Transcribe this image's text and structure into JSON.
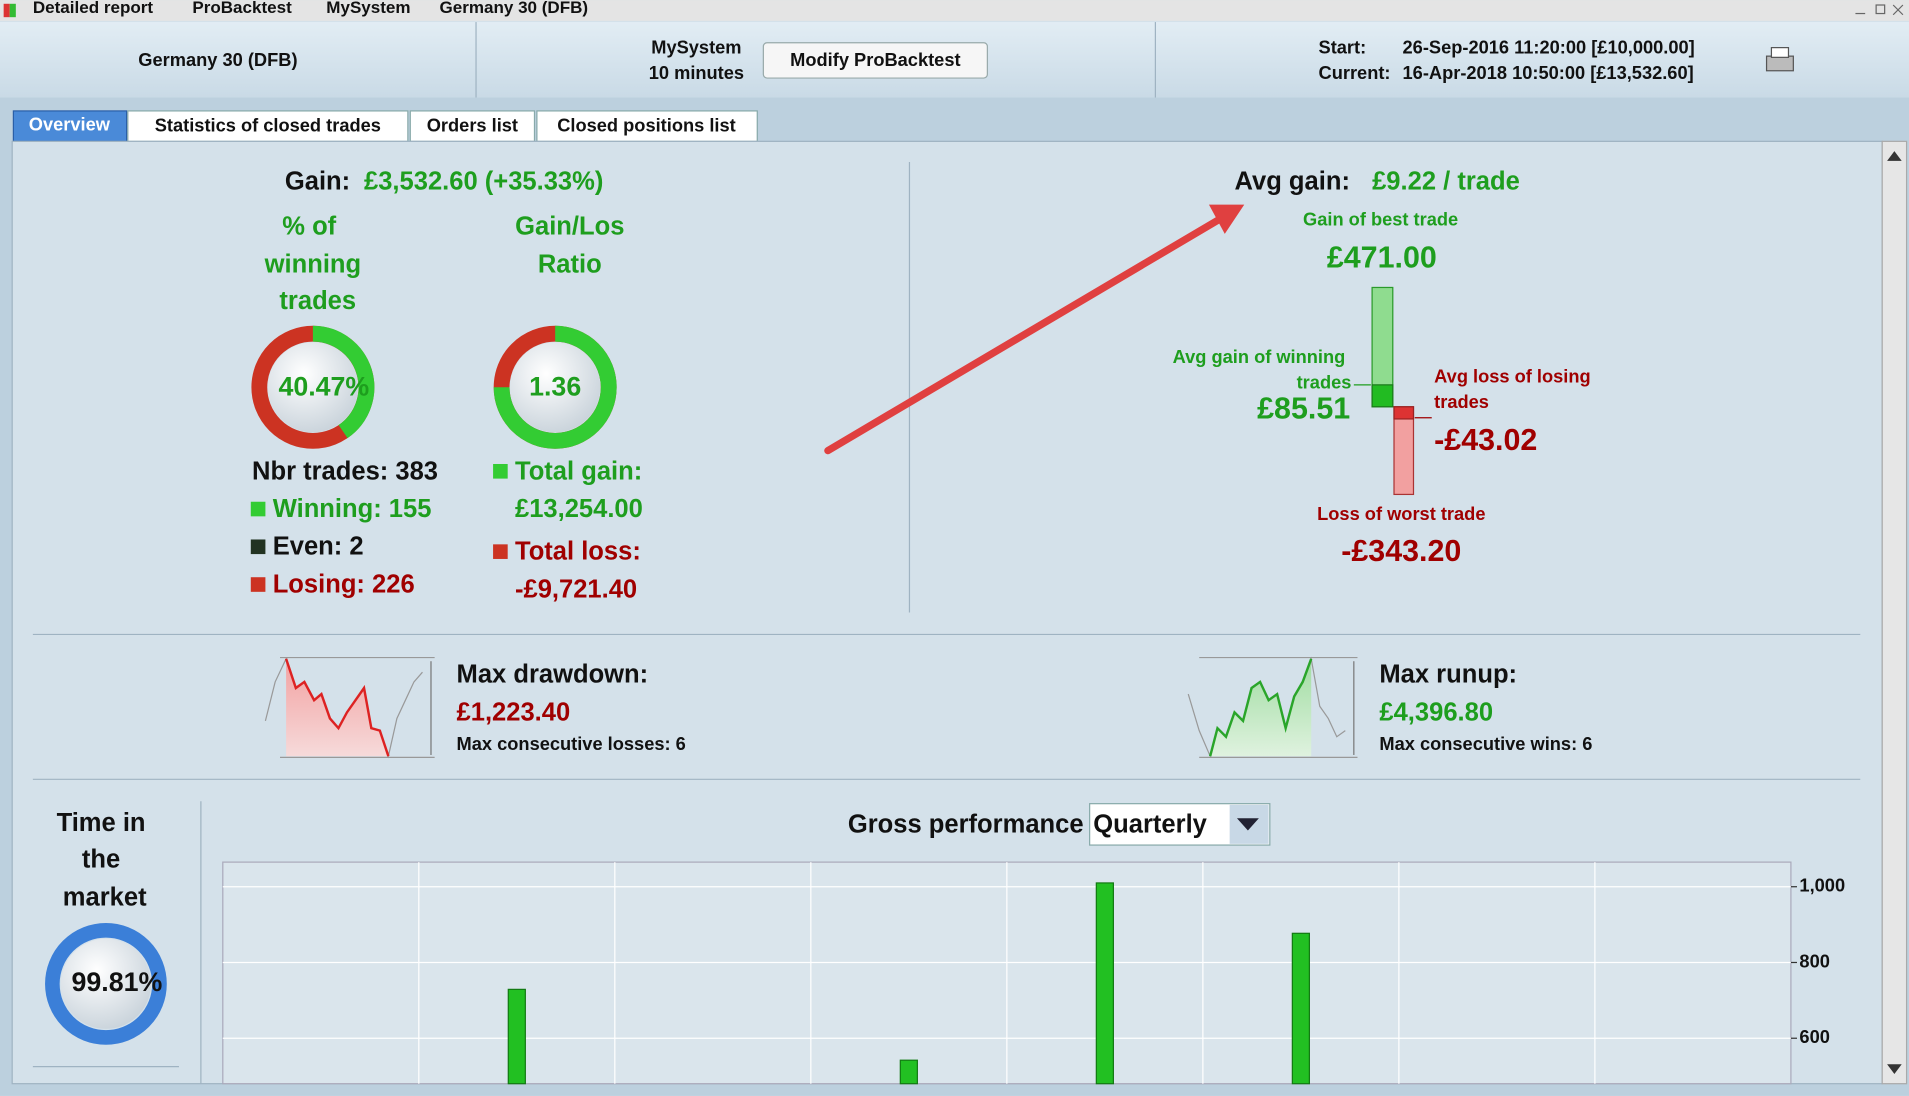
{
  "window_title": [
    "Detailed report",
    "ProBacktest",
    "MySystem",
    "Germany 30 (DFB)"
  ],
  "header": {
    "instrument": "Germany 30 (DFB)",
    "system": "MySystem",
    "timeframe": "10 minutes",
    "button": "Modify ProBacktest",
    "start_label": "Start:",
    "start_value": "26-Sep-2016 11:20:00 [£10,000.00]",
    "current_label": "Current:",
    "current_value": "16-Apr-2018 10:50:00 [£13,532.60]"
  },
  "tabs": [
    "Overview",
    "Statistics of closed trades",
    "Orders list",
    "Closed positions list"
  ],
  "gain": {
    "label": "Gain:",
    "value": "£3,532.60 (+35.33%)"
  },
  "winning_pct": {
    "title": [
      "% of",
      "winning",
      "trades"
    ],
    "gauge": {
      "value": 40.47,
      "label": "40.47%"
    }
  },
  "gain_loss_ratio": {
    "title": [
      "Gain/Los",
      "Ratio"
    ],
    "value": "1.36"
  },
  "trades": {
    "total": "Nbr trades: 383",
    "winning": "Winning: 155",
    "even": "Even: 2",
    "losing": "Losing: 226",
    "total_gain_label": "Total gain:",
    "total_gain": "£13,254.00",
    "total_loss_label": "Total loss:",
    "total_loss": "-£9,721.40"
  },
  "avg_gain": {
    "label": "Avg gain:",
    "value": "£9.22 / trade",
    "best_label": "Gain of best trade",
    "best": "£471.00",
    "avg_win_label": [
      "Avg gain of winning",
      "trades"
    ],
    "avg_win": "£85.51",
    "avg_loss_label": [
      "Avg loss of losing",
      "trades"
    ],
    "avg_loss": "-£43.02",
    "worst_label": "Loss of worst trade",
    "worst": "-£343.20"
  },
  "drawdown": {
    "label": "Max drawdown:",
    "value": "£1,223.40",
    "consecutive": "Max consecutive losses: 6"
  },
  "runup": {
    "label": "Max runup:",
    "value": "£4,396.80",
    "consecutive": "Max consecutive wins: 6"
  },
  "time_in_market": {
    "title": [
      "Time in",
      "the",
      "market"
    ],
    "value": "99.81%"
  },
  "chart_data": {
    "type": "bar",
    "title": "Gross performance",
    "period": "Quarterly",
    "categories": [
      null,
      null,
      null,
      null,
      null,
      null,
      null,
      null
    ],
    "values": [
      null,
      729,
      null,
      542,
      1010,
      877,
      null,
      null
    ],
    "color": "#22c022",
    "ylim": [
      480,
      1065
    ],
    "yticks": [
      600,
      800,
      {
        "value": 1000,
        "label": "1,000"
      }
    ],
    "grid": true
  }
}
